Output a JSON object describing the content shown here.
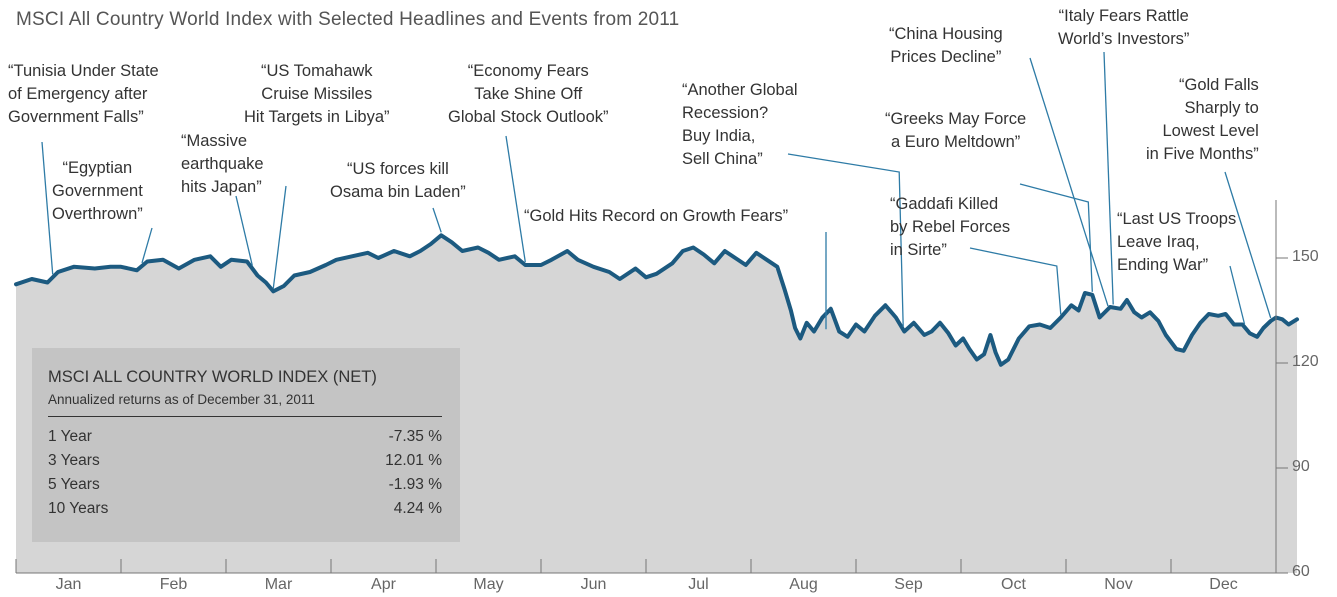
{
  "chart_data": {
    "type": "area",
    "title": "MSCI All Country World Index with Selected Headlines and Events from 2011",
    "ylim": [
      60,
      165
    ],
    "yticks": [
      "150",
      "120",
      "90",
      "60"
    ],
    "ytick_values": [
      150,
      120,
      90,
      60
    ],
    "months": [
      "Jan",
      "Feb",
      "Mar",
      "Apr",
      "May",
      "Jun",
      "Jul",
      "Aug",
      "Sep",
      "Oct",
      "Nov",
      "Dec"
    ],
    "x_start": 0,
    "x_end": 12,
    "series": [
      {
        "points": [
          [
            0.0,
            142.5
          ],
          [
            0.15,
            144.0
          ],
          [
            0.3,
            143.0
          ],
          [
            0.4,
            146.0
          ],
          [
            0.55,
            147.5
          ],
          [
            0.75,
            147.0
          ],
          [
            0.9,
            147.5
          ],
          [
            1.0,
            147.5
          ],
          [
            1.15,
            146.5
          ],
          [
            1.25,
            149.0
          ],
          [
            1.4,
            149.5
          ],
          [
            1.55,
            147.0
          ],
          [
            1.7,
            149.5
          ],
          [
            1.85,
            150.5
          ],
          [
            1.95,
            147.5
          ],
          [
            2.05,
            149.5
          ],
          [
            2.2,
            149.0
          ],
          [
            2.25,
            147.0
          ],
          [
            2.3,
            145.0
          ],
          [
            2.38,
            143.0
          ],
          [
            2.45,
            140.5
          ],
          [
            2.55,
            142.0
          ],
          [
            2.65,
            145.0
          ],
          [
            2.8,
            146.0
          ],
          [
            2.95,
            148.0
          ],
          [
            3.05,
            149.5
          ],
          [
            3.2,
            150.5
          ],
          [
            3.35,
            151.5
          ],
          [
            3.45,
            150.0
          ],
          [
            3.6,
            152.0
          ],
          [
            3.75,
            150.5
          ],
          [
            3.85,
            152.0
          ],
          [
            3.95,
            154.0
          ],
          [
            4.05,
            156.5
          ],
          [
            4.15,
            154.5
          ],
          [
            4.25,
            152.0
          ],
          [
            4.4,
            153.0
          ],
          [
            4.5,
            151.5
          ],
          [
            4.6,
            149.5
          ],
          [
            4.75,
            150.5
          ],
          [
            4.85,
            148.0
          ],
          [
            5.0,
            148.0
          ],
          [
            5.1,
            149.5
          ],
          [
            5.25,
            152.0
          ],
          [
            5.35,
            149.5
          ],
          [
            5.5,
            147.5
          ],
          [
            5.65,
            146.0
          ],
          [
            5.75,
            144.0
          ],
          [
            5.9,
            147.0
          ],
          [
            6.0,
            144.5
          ],
          [
            6.1,
            145.5
          ],
          [
            6.25,
            148.5
          ],
          [
            6.35,
            152.0
          ],
          [
            6.45,
            153.0
          ],
          [
            6.55,
            151.0
          ],
          [
            6.65,
            148.5
          ],
          [
            6.75,
            152.0
          ],
          [
            6.85,
            150.0
          ],
          [
            6.95,
            148.0
          ],
          [
            7.05,
            151.5
          ],
          [
            7.15,
            149.5
          ],
          [
            7.25,
            147.5
          ],
          [
            7.32,
            141.0
          ],
          [
            7.38,
            135.0
          ],
          [
            7.42,
            130.0
          ],
          [
            7.47,
            127.0
          ],
          [
            7.53,
            131.5
          ],
          [
            7.6,
            129.0
          ],
          [
            7.68,
            133.0
          ],
          [
            7.76,
            135.5
          ],
          [
            7.84,
            129.0
          ],
          [
            7.92,
            127.5
          ],
          [
            8.0,
            131.0
          ],
          [
            8.08,
            129.0
          ],
          [
            8.18,
            133.5
          ],
          [
            8.28,
            136.5
          ],
          [
            8.38,
            133.0
          ],
          [
            8.46,
            129.0
          ],
          [
            8.55,
            131.5
          ],
          [
            8.65,
            128.0
          ],
          [
            8.72,
            129.0
          ],
          [
            8.8,
            131.5
          ],
          [
            8.88,
            128.5
          ],
          [
            8.95,
            125.0
          ],
          [
            9.02,
            127.0
          ],
          [
            9.08,
            124.0
          ],
          [
            9.15,
            121.0
          ],
          [
            9.22,
            122.5
          ],
          [
            9.28,
            128.0
          ],
          [
            9.33,
            123.0
          ],
          [
            9.38,
            119.5
          ],
          [
            9.45,
            121.0
          ],
          [
            9.55,
            127.0
          ],
          [
            9.65,
            130.5
          ],
          [
            9.75,
            131.0
          ],
          [
            9.85,
            130.0
          ],
          [
            9.95,
            133.0
          ],
          [
            10.05,
            136.5
          ],
          [
            10.12,
            135.0
          ],
          [
            10.18,
            140.0
          ],
          [
            10.25,
            139.5
          ],
          [
            10.32,
            133.0
          ],
          [
            10.42,
            136.0
          ],
          [
            10.52,
            135.5
          ],
          [
            10.58,
            138.0
          ],
          [
            10.65,
            134.5
          ],
          [
            10.72,
            133.0
          ],
          [
            10.8,
            134.5
          ],
          [
            10.88,
            132.0
          ],
          [
            10.95,
            128.0
          ],
          [
            11.05,
            124.0
          ],
          [
            11.12,
            123.5
          ],
          [
            11.2,
            128.0
          ],
          [
            11.28,
            131.5
          ],
          [
            11.36,
            134.0
          ],
          [
            11.45,
            133.5
          ],
          [
            11.52,
            134.0
          ],
          [
            11.6,
            131.0
          ],
          [
            11.68,
            131.0
          ],
          [
            11.75,
            128.5
          ],
          [
            11.82,
            127.5
          ],
          [
            11.88,
            130.0
          ],
          [
            11.95,
            132.0
          ],
          [
            12.0,
            133.0
          ],
          [
            12.06,
            132.5
          ],
          [
            12.12,
            131.0
          ],
          [
            12.2,
            132.5
          ]
        ]
      }
    ],
    "headlines": [
      {
        "lines": [
          "“Tunisia Under State",
          "of Emergency after",
          "Government Falls”"
        ],
        "date": 0.35,
        "align": "left"
      },
      {
        "lines": [
          "“Egyptian",
          "Government",
          "Overthrown”"
        ],
        "date": 1.2,
        "align": "center"
      },
      {
        "lines": [
          "“Massive",
          "earthquake",
          "hits Japan”"
        ],
        "date": 2.25,
        "align": "left"
      },
      {
        "lines": [
          "“US Tomahawk",
          "Cruise Missiles",
          "Hit Targets in Libya”"
        ],
        "date": 2.45,
        "align": "center"
      },
      {
        "lines": [
          "“US forces kill",
          "Osama bin Laden”"
        ],
        "date": 4.05,
        "align": "center"
      },
      {
        "lines": [
          "“Economy Fears",
          "Take Shine Off",
          "Global Stock Outlook”"
        ],
        "date": 4.85,
        "align": "center"
      },
      {
        "lines": [
          "“Gold Hits Record on Growth Fears”"
        ],
        "date": 7.85,
        "align": "center"
      },
      {
        "lines": [
          "“Another Global",
          "Recession?",
          "Buy India,",
          "Sell China”"
        ],
        "date": 8.45,
        "align": "left"
      },
      {
        "lines": [
          "“Gaddafi Killed",
          "by Rebel Forces",
          "in Sirte”"
        ],
        "date": 9.95,
        "align": "left"
      },
      {
        "lines": [
          "“Greeks May Force",
          "a Euro Meltdown”"
        ],
        "date": 10.25,
        "align": "center"
      },
      {
        "lines": [
          "“China Housing",
          "Prices Decline”"
        ],
        "date": 10.4,
        "align": "center"
      },
      {
        "lines": [
          "“Italy Fears Rattle",
          "World’s Investors”"
        ],
        "date": 10.45,
        "align": "center"
      },
      {
        "lines": [
          "“Last US Troops",
          "Leave Iraq,",
          "Ending War”"
        ],
        "date": 11.7,
        "align": "left"
      },
      {
        "lines": [
          "“Gold Falls",
          "Sharply to",
          "Lowest Level",
          "in Five Months”"
        ],
        "date": 11.95,
        "align": "right"
      }
    ]
  },
  "returns_box": {
    "title": "MSCI ALL COUNTRY WORLD INDEX (NET)",
    "subtitle": "Annualized returns as of December 31, 2011",
    "rows": [
      {
        "period": "1 Year",
        "value": "-7.35 %"
      },
      {
        "period": "3 Years",
        "value": "12.01 %"
      },
      {
        "period": "5 Years",
        "value": "-1.93 %"
      },
      {
        "period": "10 Years",
        "value": "4.24 %"
      }
    ]
  },
  "colors": {
    "line": "#1c5a80",
    "area": "#d6d6d6",
    "box": "#c4c4c4",
    "leader": "#2e7ba6",
    "axis": "#777777"
  }
}
